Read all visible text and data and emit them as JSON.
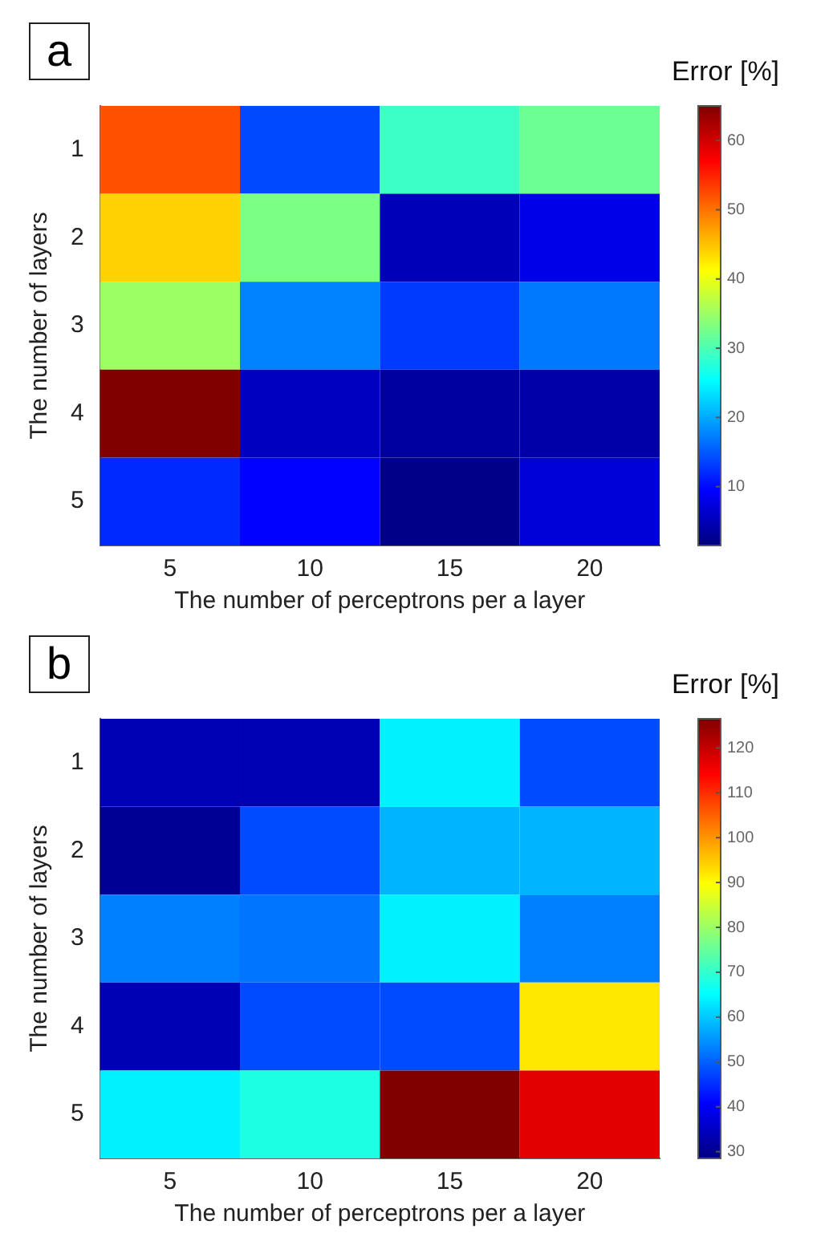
{
  "chart_data": [
    {
      "type": "heatmap",
      "title": "a",
      "xlabel": "The number of perceptrons per a layer",
      "ylabel": "The number of layers",
      "clabel": "Error [%]",
      "categories": [
        "5",
        "10",
        "15",
        "20"
      ],
      "y_categories": [
        "1",
        "2",
        "3",
        "4",
        "5"
      ],
      "cells": [
        [
          52,
          14,
          29,
          32
        ],
        [
          44,
          33,
          5,
          8
        ],
        [
          35,
          17.5,
          13,
          17
        ],
        [
          65,
          5.5,
          3.5,
          4
        ],
        [
          12,
          9.5,
          2,
          7
        ]
      ],
      "clim": [
        1.5,
        65
      ],
      "cticks": [
        10,
        20,
        30,
        40,
        50,
        60
      ]
    },
    {
      "type": "heatmap",
      "title": "b",
      "xlabel": "The number of perceptrons per a layer",
      "ylabel": "The number of layers",
      "clabel": "Error [%]",
      "categories": [
        "5",
        "10",
        "15",
        "20"
      ],
      "y_categories": [
        "1",
        "2",
        "3",
        "4",
        "5"
      ],
      "cells": [
        [
          33.5,
          33.5,
          64,
          48
        ],
        [
          30.5,
          48,
          58,
          58
        ],
        [
          53,
          52,
          64,
          53
        ],
        [
          33.5,
          48,
          48,
          92
        ],
        [
          64,
          68,
          126.5,
          117
        ]
      ],
      "clim": [
        28.5,
        126.5
      ],
      "cticks": [
        30,
        40,
        50,
        60,
        70,
        80,
        90,
        100,
        110,
        120
      ]
    }
  ]
}
